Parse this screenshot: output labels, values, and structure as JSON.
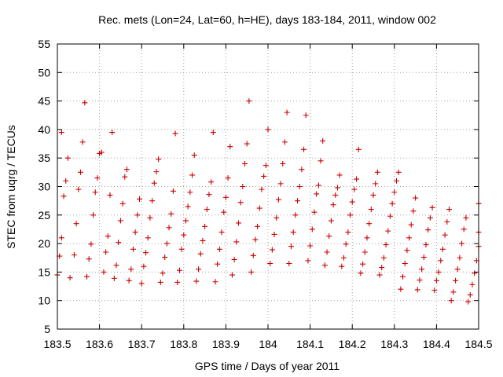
{
  "chart_data": {
    "type": "scatter",
    "title": "Rec. mets (Lon=24, Lat=60, h=HE), days 183-184, 2011, window 002",
    "xlabel": "GPS time / Days of year 2011",
    "ylabel": "STEC from uqrg / TECUs",
    "xlim": [
      183.5,
      184.5
    ],
    "ylim": [
      5,
      55
    ],
    "xticks": [
      183.5,
      183.6,
      183.7,
      183.8,
      183.9,
      184,
      184.1,
      184.2,
      184.3,
      184.4,
      184.5
    ],
    "xtick_labels": [
      "183.5",
      "183.6",
      "183.7",
      "183.8",
      "183.9",
      "184",
      "184.1",
      "184.2",
      "184.3",
      "184.4",
      "184.5"
    ],
    "yticks": [
      5,
      10,
      15,
      20,
      25,
      30,
      35,
      40,
      45,
      50,
      55
    ],
    "ytick_labels": [
      "5",
      "10",
      "15",
      "20",
      "25",
      "30",
      "35",
      "40",
      "45",
      "50",
      "55"
    ],
    "grid": true,
    "marker": "plus",
    "color": "#cc0000",
    "points": [
      [
        183.5,
        14.5
      ],
      [
        183.505,
        17.8
      ],
      [
        183.51,
        21
      ],
      [
        183.515,
        28.3
      ],
      [
        183.52,
        31
      ],
      [
        183.525,
        35
      ],
      [
        183.51,
        39.5
      ],
      [
        183.53,
        14
      ],
      [
        183.54,
        18
      ],
      [
        183.545,
        23.5
      ],
      [
        183.55,
        29.5
      ],
      [
        183.555,
        32.5
      ],
      [
        183.56,
        37.8
      ],
      [
        183.565,
        44.7
      ],
      [
        183.57,
        14.2
      ],
      [
        183.575,
        17.3
      ],
      [
        183.58,
        19.9
      ],
      [
        183.585,
        25
      ],
      [
        183.59,
        29
      ],
      [
        183.595,
        31.5
      ],
      [
        183.6,
        35.8
      ],
      [
        183.605,
        36
      ],
      [
        183.61,
        15
      ],
      [
        183.615,
        18.5
      ],
      [
        183.62,
        21.3
      ],
      [
        183.625,
        28.5
      ],
      [
        183.63,
        39.5
      ],
      [
        183.635,
        13.9
      ],
      [
        183.64,
        16.2
      ],
      [
        183.645,
        20.2
      ],
      [
        183.65,
        24
      ],
      [
        183.655,
        27
      ],
      [
        183.66,
        31.7
      ],
      [
        183.665,
        33
      ],
      [
        183.67,
        13.5
      ],
      [
        183.675,
        15.5
      ],
      [
        183.68,
        19
      ],
      [
        183.685,
        22
      ],
      [
        183.69,
        25
      ],
      [
        183.695,
        27.8
      ],
      [
        183.7,
        13
      ],
      [
        183.705,
        16
      ],
      [
        183.71,
        18.4
      ],
      [
        183.715,
        21
      ],
      [
        183.72,
        24.5
      ],
      [
        183.725,
        27.5
      ],
      [
        183.73,
        30.6
      ],
      [
        183.735,
        32.6
      ],
      [
        183.74,
        34.8
      ],
      [
        183.745,
        13.2
      ],
      [
        183.75,
        14.8
      ],
      [
        183.755,
        17.6
      ],
      [
        183.76,
        20
      ],
      [
        183.765,
        22.8
      ],
      [
        183.77,
        25.2
      ],
      [
        183.775,
        29.2
      ],
      [
        183.78,
        39.3
      ],
      [
        183.785,
        13.2
      ],
      [
        183.79,
        15.3
      ],
      [
        183.795,
        19
      ],
      [
        183.8,
        21.5
      ],
      [
        183.805,
        24
      ],
      [
        183.81,
        26.5
      ],
      [
        183.815,
        29
      ],
      [
        183.82,
        32
      ],
      [
        183.825,
        35.5
      ],
      [
        183.83,
        13.4
      ],
      [
        183.835,
        15.5
      ],
      [
        183.84,
        18.2
      ],
      [
        183.845,
        20.5
      ],
      [
        183.85,
        23
      ],
      [
        183.855,
        26
      ],
      [
        183.86,
        28.6
      ],
      [
        183.865,
        30.8
      ],
      [
        183.87,
        39.5
      ],
      [
        183.875,
        13.3
      ],
      [
        183.88,
        16.4
      ],
      [
        183.885,
        19
      ],
      [
        183.89,
        22
      ],
      [
        183.895,
        25.5
      ],
      [
        183.9,
        28.1
      ],
      [
        183.905,
        31.5
      ],
      [
        183.91,
        37
      ],
      [
        183.915,
        14.5
      ],
      [
        183.92,
        17.2
      ],
      [
        183.925,
        20.3
      ],
      [
        183.93,
        23.6
      ],
      [
        183.935,
        27.2
      ],
      [
        183.94,
        30
      ],
      [
        183.945,
        34
      ],
      [
        183.95,
        37.5
      ],
      [
        183.955,
        45
      ],
      [
        183.96,
        15
      ],
      [
        183.965,
        17.9
      ],
      [
        183.97,
        20.7
      ],
      [
        183.975,
        23
      ],
      [
        183.98,
        26.2
      ],
      [
        183.985,
        29.5
      ],
      [
        183.99,
        31.8
      ],
      [
        183.995,
        33.7
      ],
      [
        184.0,
        40
      ],
      [
        184.005,
        16.5
      ],
      [
        184.01,
        18.9
      ],
      [
        184.015,
        21.6
      ],
      [
        184.02,
        24.5
      ],
      [
        184.025,
        27.7
      ],
      [
        184.03,
        30.5
      ],
      [
        184.035,
        34
      ],
      [
        184.04,
        37.8
      ],
      [
        184.045,
        43
      ],
      [
        184.05,
        16.5
      ],
      [
        184.055,
        19.5
      ],
      [
        184.06,
        22
      ],
      [
        184.065,
        25
      ],
      [
        184.07,
        27.5
      ],
      [
        184.075,
        30
      ],
      [
        184.08,
        33
      ],
      [
        184.085,
        36.5
      ],
      [
        184.09,
        42.5
      ],
      [
        184.095,
        17
      ],
      [
        184.1,
        19.6
      ],
      [
        184.105,
        22.5
      ],
      [
        184.11,
        25.5
      ],
      [
        184.115,
        28.7
      ],
      [
        184.12,
        30.2
      ],
      [
        184.125,
        34.5
      ],
      [
        184.13,
        38
      ],
      [
        184.135,
        16.2
      ],
      [
        184.14,
        18.5
      ],
      [
        184.145,
        21.3
      ],
      [
        184.15,
        24
      ],
      [
        184.155,
        26.8
      ],
      [
        184.16,
        28.5
      ],
      [
        184.165,
        29.8
      ],
      [
        184.17,
        32
      ],
      [
        184.175,
        16
      ],
      [
        184.18,
        17.5
      ],
      [
        184.185,
        19.9
      ],
      [
        184.19,
        22
      ],
      [
        184.195,
        25
      ],
      [
        184.2,
        27.3
      ],
      [
        184.205,
        29.5
      ],
      [
        184.21,
        31.3
      ],
      [
        184.215,
        36.5
      ],
      [
        184.22,
        14.8
      ],
      [
        184.225,
        16.4
      ],
      [
        184.23,
        18.5
      ],
      [
        184.235,
        21
      ],
      [
        184.24,
        23.5
      ],
      [
        184.245,
        26
      ],
      [
        184.25,
        28.5
      ],
      [
        184.255,
        30.5
      ],
      [
        184.26,
        32.5
      ],
      [
        184.265,
        14.5
      ],
      [
        184.27,
        15.8
      ],
      [
        184.275,
        17.5
      ],
      [
        184.28,
        19.8
      ],
      [
        184.285,
        22.2
      ],
      [
        184.29,
        24.8
      ],
      [
        184.295,
        27
      ],
      [
        184.3,
        29
      ],
      [
        184.305,
        31
      ],
      [
        184.31,
        32.5
      ],
      [
        184.315,
        12
      ],
      [
        184.32,
        14.2
      ],
      [
        184.325,
        16.5
      ],
      [
        184.33,
        18.8
      ],
      [
        184.335,
        21
      ],
      [
        184.34,
        23.3
      ],
      [
        184.345,
        25.7
      ],
      [
        184.35,
        28
      ],
      [
        184.355,
        11.9
      ],
      [
        184.36,
        13.6
      ],
      [
        184.365,
        15.5
      ],
      [
        184.37,
        17.6
      ],
      [
        184.375,
        19.8
      ],
      [
        184.38,
        22.4
      ],
      [
        184.385,
        24.5
      ],
      [
        184.39,
        26.3
      ],
      [
        184.395,
        11.8
      ],
      [
        184.4,
        13.5
      ],
      [
        184.405,
        15
      ],
      [
        184.41,
        17
      ],
      [
        184.415,
        19
      ],
      [
        184.42,
        21.5
      ],
      [
        184.425,
        23.8
      ],
      [
        184.43,
        26
      ],
      [
        184.435,
        10
      ],
      [
        184.44,
        11.5
      ],
      [
        184.445,
        13.5
      ],
      [
        184.45,
        15.5
      ],
      [
        184.455,
        17.5
      ],
      [
        184.46,
        20
      ],
      [
        184.465,
        22.5
      ],
      [
        184.47,
        24.5
      ],
      [
        184.475,
        9.8
      ],
      [
        184.48,
        11
      ],
      [
        184.485,
        12.8
      ],
      [
        184.49,
        14.8
      ],
      [
        184.495,
        17
      ],
      [
        184.5,
        19.5
      ],
      [
        184.5,
        22
      ],
      [
        184.5,
        27
      ]
    ]
  }
}
